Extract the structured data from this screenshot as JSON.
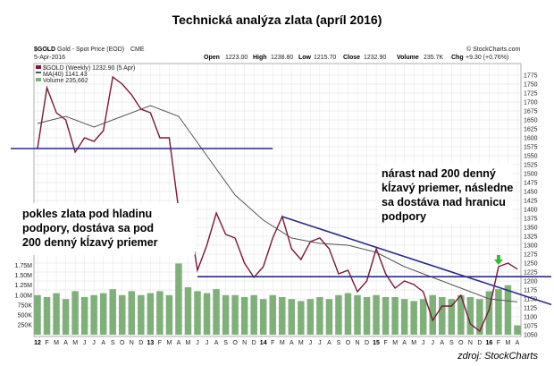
{
  "page": {
    "title": "Technická analýza zlata (apríl 2016)",
    "source": "zdroj: StockCharts"
  },
  "header": {
    "symbol": "$GOLD",
    "name": "Gold - Spot Price (EOD)",
    "exchange": "CME",
    "brand": "© StockCharts.com",
    "date": "5-Apr-2016",
    "open_label": "Open",
    "open": "1223.00",
    "high_label": "High",
    "high": "1238.80",
    "low_label": "Low",
    "low": "1215.70",
    "close_label": "Close",
    "close": "1232.90",
    "volume_label": "Volume",
    "volume": "235.7K",
    "chg_label": "Chg",
    "chg": "+9.30 (+0.76%)"
  },
  "legend": {
    "price": "$GOLD (Weekly) 1232.90 (5 Apr)",
    "ma": "MA(40) 1141.43",
    "volume": "Volume 235,662"
  },
  "colors": {
    "price": "#7a1838",
    "ma": "#555555",
    "volume": "#7fb07a",
    "trendline": "#2a2a8a",
    "up_arrow": "#cc0000",
    "down_arrow": "#33bb33",
    "grid": "#dddddd"
  },
  "annotations": {
    "left": [
      "pokles zlata pod hladinu",
      "podpory, dostáva sa pod",
      "200 denný kĺzavý priemer"
    ],
    "right": [
      "nárast nad 200 denný",
      "kĺzavý priemer, následne",
      "sa dostáva nad hranicu",
      "podpory"
    ]
  },
  "chart_data": {
    "type": "line",
    "frequency": "weekly",
    "x_start": "2012-01",
    "x_end": "2016-04",
    "ylim": [
      1050,
      1800
    ],
    "y_ticks": [
      1775,
      1750,
      1725,
      1700,
      1675,
      1650,
      1625,
      1600,
      1575,
      1550,
      1525,
      1500,
      1475,
      1450,
      1425,
      1400,
      1375,
      1350,
      1325,
      1300,
      1275,
      1250,
      1225,
      1200,
      1175,
      1150,
      1125,
      1100,
      1075,
      1050
    ],
    "x_ticks": [
      "12",
      "F",
      "M",
      "A",
      "M",
      "J",
      "J",
      "A",
      "S",
      "O",
      "N",
      "D",
      "13",
      "F",
      "M",
      "A",
      "M",
      "J",
      "J",
      "A",
      "S",
      "O",
      "N",
      "D",
      "14",
      "F",
      "M",
      "A",
      "M",
      "J",
      "J",
      "A",
      "S",
      "O",
      "N",
      "D",
      "15",
      "F",
      "M",
      "A",
      "M",
      "J",
      "J",
      "A",
      "S",
      "O",
      "N",
      "D",
      "16",
      "F",
      "M",
      "A"
    ],
    "series": [
      {
        "key": "price",
        "x": [
          "2012-01",
          "2012-02",
          "2012-03",
          "2012-04",
          "2012-05",
          "2012-06",
          "2012-07",
          "2012-08",
          "2012-09",
          "2012-10",
          "2012-11",
          "2012-12",
          "2013-01",
          "2013-02",
          "2013-03",
          "2013-04",
          "2013-05",
          "2013-06",
          "2013-07",
          "2013-08",
          "2013-09",
          "2013-10",
          "2013-11",
          "2013-12",
          "2014-01",
          "2014-02",
          "2014-03",
          "2014-04",
          "2014-05",
          "2014-06",
          "2014-07",
          "2014-08",
          "2014-09",
          "2014-10",
          "2014-11",
          "2014-12",
          "2015-01",
          "2015-02",
          "2015-03",
          "2015-04",
          "2015-05",
          "2015-06",
          "2015-07",
          "2015-08",
          "2015-09",
          "2015-10",
          "2015-11",
          "2015-12",
          "2016-01",
          "2016-02",
          "2016-03",
          "2016-04"
        ],
        "values": [
          1570,
          1740,
          1670,
          1650,
          1560,
          1600,
          1590,
          1620,
          1770,
          1750,
          1720,
          1680,
          1670,
          1600,
          1600,
          1400,
          1390,
          1230,
          1300,
          1390,
          1330,
          1320,
          1250,
          1210,
          1240,
          1320,
          1380,
          1290,
          1260,
          1310,
          1320,
          1290,
          1220,
          1230,
          1170,
          1200,
          1290,
          1220,
          1180,
          1200,
          1190,
          1170,
          1090,
          1130,
          1130,
          1160,
          1080,
          1060,
          1120,
          1240,
          1250,
          1232.9
        ]
      },
      {
        "key": "ma",
        "name": "MA(40)",
        "x": [
          "2012-01",
          "2012-04",
          "2012-07",
          "2012-10",
          "2013-01",
          "2013-04",
          "2013-07",
          "2013-10",
          "2014-01",
          "2014-04",
          "2014-07",
          "2014-10",
          "2015-01",
          "2015-04",
          "2015-07",
          "2015-10",
          "2016-01",
          "2016-04"
        ],
        "values": [
          1640,
          1660,
          1630,
          1660,
          1690,
          1660,
          1550,
          1440,
          1370,
          1320,
          1305,
          1300,
          1280,
          1240,
          1210,
          1180,
          1150,
          1141.43
        ]
      }
    ],
    "volume": {
      "ticks": [
        "1.75M",
        "1.50M",
        "1.25M",
        "1.00M",
        "750K",
        "500K",
        "250K"
      ],
      "ylim": [
        0,
        1900000
      ],
      "x": [
        "2012-01",
        "2012-02",
        "2012-03",
        "2012-04",
        "2012-05",
        "2012-06",
        "2012-07",
        "2012-08",
        "2012-09",
        "2012-10",
        "2012-11",
        "2012-12",
        "2013-01",
        "2013-02",
        "2013-03",
        "2013-04",
        "2013-05",
        "2013-06",
        "2013-07",
        "2013-08",
        "2013-09",
        "2013-10",
        "2013-11",
        "2013-12",
        "2014-01",
        "2014-02",
        "2014-03",
        "2014-04",
        "2014-05",
        "2014-06",
        "2014-07",
        "2014-08",
        "2014-09",
        "2014-10",
        "2014-11",
        "2014-12",
        "2015-01",
        "2015-02",
        "2015-03",
        "2015-04",
        "2015-05",
        "2015-06",
        "2015-07",
        "2015-08",
        "2015-09",
        "2015-10",
        "2015-11",
        "2015-12",
        "2016-01",
        "2016-02",
        "2016-03",
        "2016-04"
      ],
      "values": [
        1000000,
        950000,
        1050000,
        900000,
        1100000,
        950000,
        1000000,
        1050000,
        1150000,
        1000000,
        1100000,
        1000000,
        1050000,
        1100000,
        1000000,
        1800000,
        1200000,
        1100000,
        1050000,
        1150000,
        1000000,
        1000000,
        950000,
        1000000,
        900000,
        1000000,
        950000,
        900000,
        850000,
        900000,
        950000,
        900000,
        1000000,
        1050000,
        1000000,
        950000,
        1000000,
        950000,
        950000,
        900000,
        850000,
        900000,
        1000000,
        950000,
        900000,
        1000000,
        950000,
        900000,
        1100000,
        1150000,
        1250000,
        235662
      ]
    },
    "lines": [
      {
        "key": "support-top",
        "x": [
          "2012-01",
          "2014-02"
        ],
        "values": [
          1570,
          1570
        ]
      },
      {
        "key": "support-bottom",
        "x": [
          "2013-06",
          "2016-04"
        ],
        "values": [
          1212,
          1212
        ]
      },
      {
        "key": "downtrend",
        "x": [
          "2014-03",
          "2016-04"
        ],
        "values": [
          1380,
          1165
        ]
      }
    ],
    "markers": [
      {
        "key": "up-arrow",
        "x": "2013-04",
        "y": 1380
      },
      {
        "key": "down-arrow",
        "x": "2016-02",
        "y": 1260
      }
    ],
    "grid": true
  }
}
